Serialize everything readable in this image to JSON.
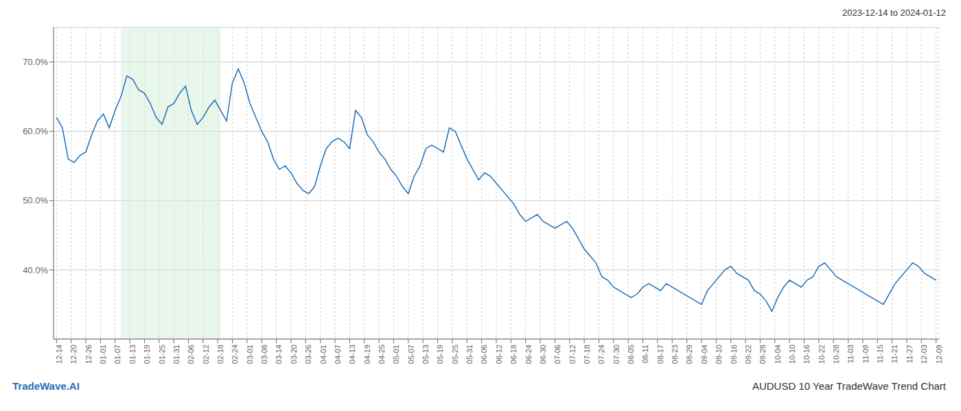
{
  "chart_data": {
    "type": "line",
    "title": "2023-12-14 to 2024-01-12",
    "annotations": [
      {
        "text": "TradeWave.AI",
        "color": "#1f6eb5"
      },
      {
        "text": "AUDUSD 10 Year TradeWave Trend Chart"
      }
    ],
    "color": "#1f6eb5",
    "grid": true,
    "span": {
      "start": 11,
      "end": 28,
      "color": "#d4edda"
    },
    "xlim": [
      -0.5,
      150.5
    ],
    "xticks": [
      {
        "value": 0,
        "label": "12-14"
      },
      {
        "value": 2.5,
        "label": "12-20"
      },
      {
        "value": 5,
        "label": "12-26"
      },
      {
        "value": 7.5,
        "label": "01-01"
      },
      {
        "value": 10,
        "label": "01-07"
      },
      {
        "value": 12.5,
        "label": "01-13"
      },
      {
        "value": 15,
        "label": "01-19"
      },
      {
        "value": 17.5,
        "label": "01-25"
      },
      {
        "value": 20,
        "label": "01-31"
      },
      {
        "value": 22.5,
        "label": "02-06"
      },
      {
        "value": 25,
        "label": "02-12"
      },
      {
        "value": 27.5,
        "label": "02-18"
      },
      {
        "value": 30,
        "label": "02-24"
      },
      {
        "value": 32.5,
        "label": "03-01"
      },
      {
        "value": 35,
        "label": "03-08"
      },
      {
        "value": 37.5,
        "label": "03-14"
      },
      {
        "value": 40,
        "label": "03-20"
      },
      {
        "value": 42.5,
        "label": "03-26"
      },
      {
        "value": 45,
        "label": "04-01"
      },
      {
        "value": 47.5,
        "label": "04-07"
      },
      {
        "value": 50,
        "label": "04-13"
      },
      {
        "value": 52.5,
        "label": "04-19"
      },
      {
        "value": 55,
        "label": "04-25"
      },
      {
        "value": 57.5,
        "label": "05-01"
      },
      {
        "value": 60,
        "label": "05-07"
      },
      {
        "value": 62.5,
        "label": "05-13"
      },
      {
        "value": 65,
        "label": "05-19"
      },
      {
        "value": 67.5,
        "label": "05-25"
      },
      {
        "value": 70,
        "label": "05-31"
      },
      {
        "value": 72.5,
        "label": "06-06"
      },
      {
        "value": 75,
        "label": "06-12"
      },
      {
        "value": 77.5,
        "label": "06-18"
      },
      {
        "value": 80,
        "label": "06-24"
      },
      {
        "value": 82.5,
        "label": "06-30"
      },
      {
        "value": 85,
        "label": "07-06"
      },
      {
        "value": 87.5,
        "label": "07-12"
      },
      {
        "value": 90,
        "label": "07-18"
      },
      {
        "value": 92.5,
        "label": "07-24"
      },
      {
        "value": 95,
        "label": "07-30"
      },
      {
        "value": 97.5,
        "label": "08-05"
      },
      {
        "value": 100,
        "label": "08-11"
      },
      {
        "value": 102.5,
        "label": "08-17"
      },
      {
        "value": 105,
        "label": "08-23"
      },
      {
        "value": 107.5,
        "label": "08-29"
      },
      {
        "value": 110,
        "label": "09-04"
      },
      {
        "value": 112.5,
        "label": "09-10"
      },
      {
        "value": 115,
        "label": "09-16"
      },
      {
        "value": 117.5,
        "label": "09-22"
      },
      {
        "value": 120,
        "label": "09-28"
      },
      {
        "value": 122.5,
        "label": "10-04"
      },
      {
        "value": 125,
        "label": "10-10"
      },
      {
        "value": 127.5,
        "label": "10-16"
      },
      {
        "value": 130,
        "label": "10-22"
      },
      {
        "value": 132.5,
        "label": "10-28"
      },
      {
        "value": 135,
        "label": "11-03"
      },
      {
        "value": 137.5,
        "label": "11-09"
      },
      {
        "value": 140,
        "label": "11-15"
      },
      {
        "value": 142.5,
        "label": "11-21"
      },
      {
        "value": 145,
        "label": "11-27"
      },
      {
        "value": 147.5,
        "label": "12-03"
      },
      {
        "value": 150,
        "label": "12-09"
      }
    ],
    "ylim": [
      30,
      75
    ],
    "yticks": [
      {
        "value": 40,
        "label": "40.0%"
      },
      {
        "value": 50,
        "label": "50.0%"
      },
      {
        "value": 60,
        "label": "60.0%"
      },
      {
        "value": 70,
        "label": "70.0%"
      }
    ],
    "values": [
      62.0,
      60.5,
      56.0,
      55.5,
      56.5,
      57.0,
      59.5,
      61.5,
      62.5,
      60.5,
      63.0,
      65.0,
      68.0,
      67.5,
      66.0,
      65.5,
      64.0,
      62.0,
      61.0,
      63.5,
      64.0,
      65.5,
      66.5,
      63.0,
      61.0,
      62.0,
      63.5,
      64.5,
      63.0,
      61.5,
      67.0,
      69.0,
      67.0,
      64.0,
      62.0,
      60.0,
      58.5,
      56.0,
      54.5,
      55.0,
      54.0,
      52.5,
      51.5,
      51.0,
      52.0,
      55.0,
      57.5,
      58.5,
      59.0,
      58.5,
      57.5,
      63.0,
      62.0,
      59.5,
      58.5,
      57.0,
      56.0,
      54.5,
      53.5,
      52.0,
      51.0,
      53.5,
      55.0,
      57.5,
      58.0,
      57.5,
      57.0,
      60.5,
      60.0,
      58.0,
      56.0,
      54.5,
      53.0,
      54.0,
      53.5,
      52.5,
      51.5,
      50.5,
      49.5,
      48.0,
      47.0,
      47.5,
      48.0,
      47.0,
      46.5,
      46.0,
      46.5,
      47.0,
      46.0,
      44.5,
      43.0,
      42.0,
      41.0,
      39.0,
      38.5,
      37.5,
      37.0,
      36.5,
      36.0,
      36.5,
      37.5,
      38.0,
      37.5,
      37.0,
      38.0,
      37.5,
      37.0,
      36.5,
      36.0,
      35.5,
      35.0,
      37.0,
      38.0,
      39.0,
      40.0,
      40.5,
      39.5,
      39.0,
      38.5,
      37.0,
      36.5,
      35.5,
      34.0,
      36.0,
      37.5,
      38.5,
      38.0,
      37.5,
      38.5,
      39.0,
      40.5,
      41.0,
      40.0,
      39.0,
      38.5,
      38.0,
      37.5,
      37.0,
      36.5,
      36.0,
      35.5,
      35.0,
      36.5,
      38.0,
      39.0,
      40.0,
      41.0,
      40.5,
      39.5,
      39.0,
      38.5
    ]
  }
}
